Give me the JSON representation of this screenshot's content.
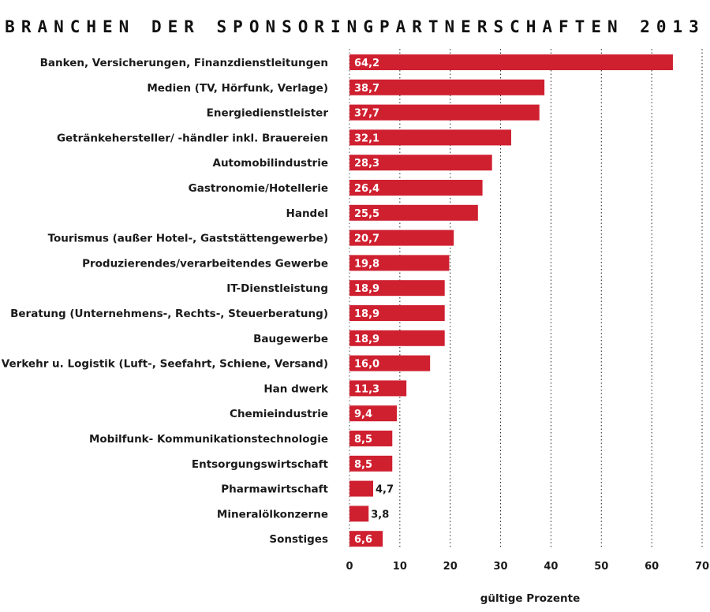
{
  "chart_data": {
    "type": "bar",
    "orientation": "horizontal",
    "title": "BRANCHEN DER SPONSORINGPARTNERSCHAFTEN 2013",
    "xlabel": "gültige Prozente",
    "ylabel": "",
    "xlim": [
      0,
      70
    ],
    "xticks": [
      "0",
      "10",
      "20",
      "30",
      "40",
      "50",
      "60",
      "70"
    ],
    "grid": "vertical dotted",
    "bar_color": "#cf2030",
    "categories": [
      "Banken, Versicherungen, Finanzdienstleitungen",
      "Medien (TV, Hörfunk, Verlage)",
      "Energiedienstleister",
      "Getränkehersteller/ -händler inkl. Brauereien",
      "Automobilindustrie",
      "Gastronomie/Hotellerie",
      "Handel",
      "Tourismus (außer Hotel-, Gaststättengewerbe)",
      "Produzierendes/verarbeitendes Gewerbe",
      "IT-Dienstleistung",
      "Beratung (Unternehmens-, Rechts-, Steuerberatung)",
      "Baugewerbe",
      "Verkehr u. Logistik (Luft-, Seefahrt, Schiene, Versand)",
      "Han dwerk",
      "Chemieindustrie",
      "Mobilfunk- Kommunikationstechnologie",
      "Entsorgungswirtschaft",
      "Pharmawirtschaft",
      "Mineralölkonzerne",
      "Sonstiges"
    ],
    "values": [
      64.2,
      38.7,
      37.7,
      32.1,
      28.3,
      26.4,
      25.5,
      20.7,
      19.8,
      18.9,
      18.9,
      18.9,
      16.0,
      11.3,
      9.4,
      8.5,
      8.5,
      4.7,
      3.8,
      6.6
    ],
    "value_labels": [
      "64,2",
      "38,7",
      "37,7",
      "32,1",
      "28,3",
      "26,4",
      "25,5",
      "20,7",
      "19,8",
      "18,9",
      "18,9",
      "18,9",
      "16,0",
      "11,3",
      "9,4",
      "8,5",
      "8,5",
      "4,7",
      "3,8",
      "6,6"
    ]
  }
}
